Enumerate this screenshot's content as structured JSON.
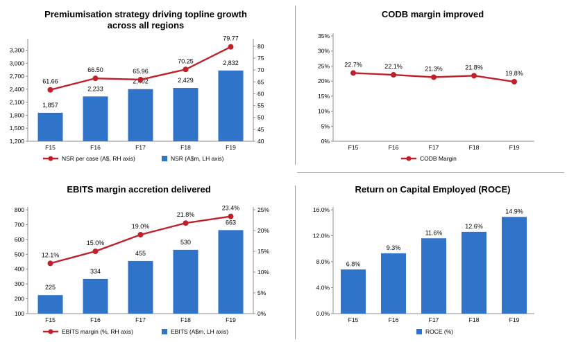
{
  "chart_data": [
    {
      "type": "bar",
      "title": "Premiumisation strategy driving topline growth across all regions",
      "categories": [
        "F15",
        "F16",
        "F17",
        "F18",
        "F19"
      ],
      "ylim": [
        1200,
        3500
      ],
      "yticks": [
        "1,200",
        "1,500",
        "1,800",
        "2,100",
        "2,400",
        "2,700",
        "3,000",
        "3,300"
      ],
      "y2lim": [
        40,
        82
      ],
      "y2ticks": [
        "40",
        "45",
        "50",
        "55",
        "60",
        "65",
        "70",
        "75",
        "80"
      ],
      "series": [
        {
          "name": "NSR (A$m, LH axis)",
          "type": "bar",
          "axis": "left",
          "values": [
            1857,
            2233,
            2402,
            2429,
            2832
          ],
          "labels": [
            "1,857",
            "2,233",
            "2,402",
            "2,429",
            "2,832"
          ]
        },
        {
          "name": "NSR per case (A$, RH axis)",
          "type": "line",
          "axis": "right",
          "values": [
            61.66,
            66.5,
            65.96,
            70.25,
            79.77
          ],
          "labels": [
            "61.66",
            "66.50",
            "65.96",
            "70.25",
            "79.77"
          ]
        }
      ],
      "legend": "bottom"
    },
    {
      "type": "line",
      "title": "CODB margin improved",
      "categories": [
        "F15",
        "F16",
        "F17",
        "F18",
        "F19"
      ],
      "ylim": [
        0,
        35
      ],
      "yticks": [
        "0%",
        "5%",
        "10%",
        "15%",
        "20%",
        "25%",
        "30%",
        "35%"
      ],
      "series": [
        {
          "name": "CODB Margin",
          "type": "line",
          "axis": "left",
          "values": [
            22.7,
            22.1,
            21.3,
            21.8,
            19.8
          ],
          "labels": [
            "22.7%",
            "22.1%",
            "21.3%",
            "21.8%",
            "19.8%"
          ]
        }
      ],
      "legend": "bottom"
    },
    {
      "type": "bar",
      "title": "EBITS margin accretion delivered",
      "categories": [
        "F15",
        "F16",
        "F17",
        "F18",
        "F19"
      ],
      "ylim": [
        100,
        800
      ],
      "yticks": [
        "100",
        "200",
        "300",
        "400",
        "500",
        "600",
        "700",
        "800"
      ],
      "y2lim": [
        0,
        25
      ],
      "y2ticks": [
        "0%",
        "5%",
        "10%",
        "15%",
        "20%",
        "25%"
      ],
      "series": [
        {
          "name": "EBITS (A$m, LH axis)",
          "type": "bar",
          "axis": "left",
          "values": [
            225,
            334,
            455,
            530,
            663
          ],
          "labels": [
            "225",
            "334",
            "455",
            "530",
            "663"
          ]
        },
        {
          "name": "EBITS margin (%, RH axis)",
          "type": "line",
          "axis": "right",
          "values": [
            12.1,
            15.0,
            19.0,
            21.8,
            23.4
          ],
          "labels": [
            "12.1%",
            "15.0%",
            "19.0%",
            "21.8%",
            "23.4%"
          ]
        }
      ],
      "legend": "bottom"
    },
    {
      "type": "bar",
      "title": "Return on Capital Employed (ROCE)",
      "categories": [
        "F15",
        "F16",
        "F17",
        "F18",
        "F19"
      ],
      "ylim": [
        0,
        16
      ],
      "yticks": [
        "0.0%",
        "4.0%",
        "8.0%",
        "12.0%",
        "16.0%"
      ],
      "series": [
        {
          "name": "ROCE (%)",
          "type": "bar",
          "axis": "left",
          "values": [
            6.8,
            9.3,
            11.6,
            12.6,
            14.9
          ],
          "labels": [
            "6.8%",
            "9.3%",
            "11.6%",
            "12.6%",
            "14.9%"
          ]
        }
      ],
      "legend": "bottom"
    }
  ],
  "colors": {
    "bar": "#2f74c8",
    "line": "#c0202a",
    "axis": "#8c8c8c",
    "divider": "#9a9a9a"
  }
}
